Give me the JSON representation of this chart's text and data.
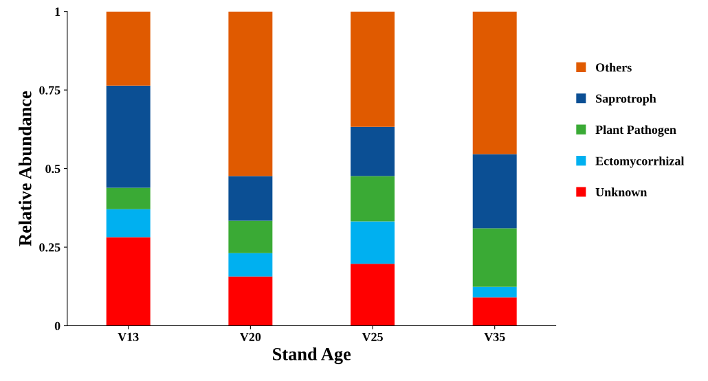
{
  "chart_data": {
    "type": "bar",
    "stacked": true,
    "xlabel": "Stand Age",
    "ylabel": "Relative Abundance",
    "categories": [
      "V13",
      "V20",
      "V25",
      "V35"
    ],
    "series": [
      {
        "name": "Unknown",
        "color": "#ff0000",
        "values": [
          0.282,
          0.157,
          0.197,
          0.09
        ]
      },
      {
        "name": "Ectomycorrhizal",
        "color": "#00b0f0",
        "values": [
          0.089,
          0.074,
          0.135,
          0.034
        ]
      },
      {
        "name": "Plant Pathogen",
        "color": "#3aaa35",
        "values": [
          0.068,
          0.103,
          0.144,
          0.186
        ]
      },
      {
        "name": "Saprotroph",
        "color": "#0b4f94",
        "values": [
          0.325,
          0.142,
          0.157,
          0.236
        ]
      },
      {
        "name": "Others",
        "color": "#e05a00",
        "values": [
          0.236,
          0.524,
          0.367,
          0.454
        ]
      }
    ],
    "ylim": [
      0,
      1
    ],
    "yticks": [
      0,
      0.25,
      0.5,
      0.75,
      1
    ],
    "grid": false,
    "legend": "right"
  }
}
